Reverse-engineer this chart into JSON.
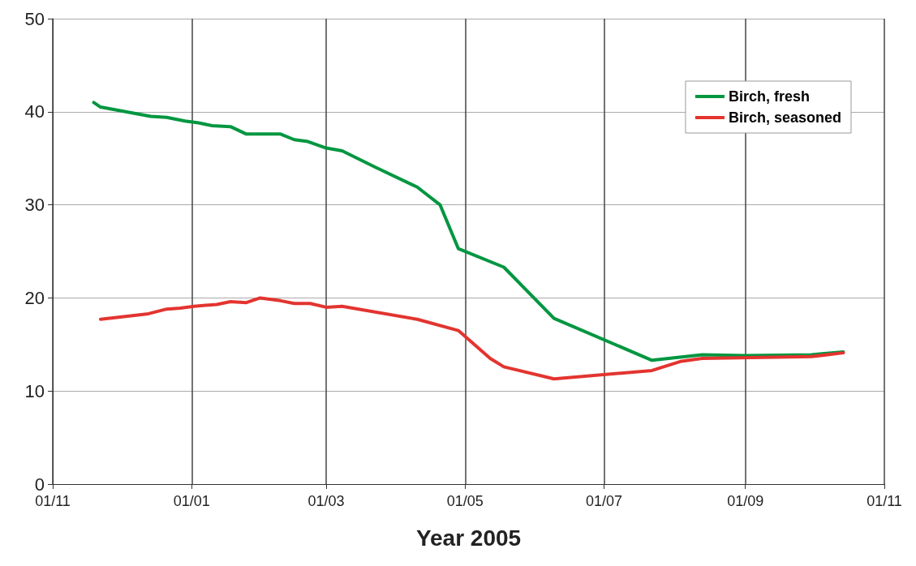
{
  "chart_data": {
    "type": "line",
    "xlabel": "Year 2005",
    "x": [
      "2004-11-19",
      "2004-11-22",
      "2004-12-14",
      "2004-12-21",
      "2004-12-29",
      "2005-01-04",
      "2005-01-10",
      "2005-01-18",
      "2005-01-25",
      "2005-02-09",
      "2005-02-15",
      "2005-02-21",
      "2005-03-01",
      "2005-03-08",
      "2005-03-23",
      "2005-04-10",
      "2005-04-20",
      "2005-04-28",
      "2005-05-18",
      "2005-06-09",
      "2005-07-22",
      "2005-08-13",
      "2005-09-01",
      "2005-09-30",
      "2005-10-14"
    ],
    "series": [
      {
        "name": "Birch, fresh",
        "color": "#009640",
        "values": [
          41.0,
          40.5,
          39.5,
          39.4,
          39.0,
          38.8,
          38.5,
          38.4,
          37.6,
          37.6,
          37.0,
          36.8,
          36.1,
          35.8,
          34.0,
          31.9,
          30.0,
          25.3,
          23.3,
          17.8,
          13.3,
          13.9,
          13.8,
          13.9,
          14.2
        ]
      },
      {
        "name": "Birch, seasoned",
        "color": "#e3342f",
        "x": [
          "2004-11-22",
          "2004-12-13",
          "2004-12-21",
          "2004-12-27",
          "2005-01-02",
          "2005-01-12",
          "2005-01-18",
          "2005-01-25",
          "2005-01-31",
          "2005-02-09",
          "2005-02-15",
          "2005-02-22",
          "2005-03-01",
          "2005-03-08",
          "2005-04-10",
          "2005-04-28",
          "2005-05-12",
          "2005-05-18",
          "2005-06-09",
          "2005-07-22",
          "2005-08-04",
          "2005-08-13",
          "2005-09-30",
          "2005-10-14"
        ],
        "values": [
          17.7,
          18.3,
          18.8,
          18.9,
          19.1,
          19.3,
          19.6,
          19.5,
          20.0,
          19.7,
          19.4,
          19.4,
          19.0,
          19.1,
          17.7,
          16.5,
          13.5,
          12.6,
          11.3,
          12.2,
          13.2,
          13.5,
          13.7,
          14.1
        ]
      }
    ],
    "xlim": [
      "2004-11-01",
      "2005-11-01"
    ],
    "xticks": [
      {
        "value": "2004-11-01",
        "label": "01/11"
      },
      {
        "value": "2005-01-01",
        "label": "01/01"
      },
      {
        "value": "2005-03-01",
        "label": "01/03"
      },
      {
        "value": "2005-05-01",
        "label": "01/05"
      },
      {
        "value": "2005-07-01",
        "label": "01/07"
      },
      {
        "value": "2005-09-01",
        "label": "01/09"
      },
      {
        "value": "2005-11-01",
        "label": "01/11"
      }
    ],
    "ylim": [
      0,
      50
    ],
    "yticks": [
      0,
      10,
      20,
      30,
      40,
      50
    ],
    "grid": true,
    "legend": "top right",
    "marker": "none",
    "line_style": "solid"
  }
}
